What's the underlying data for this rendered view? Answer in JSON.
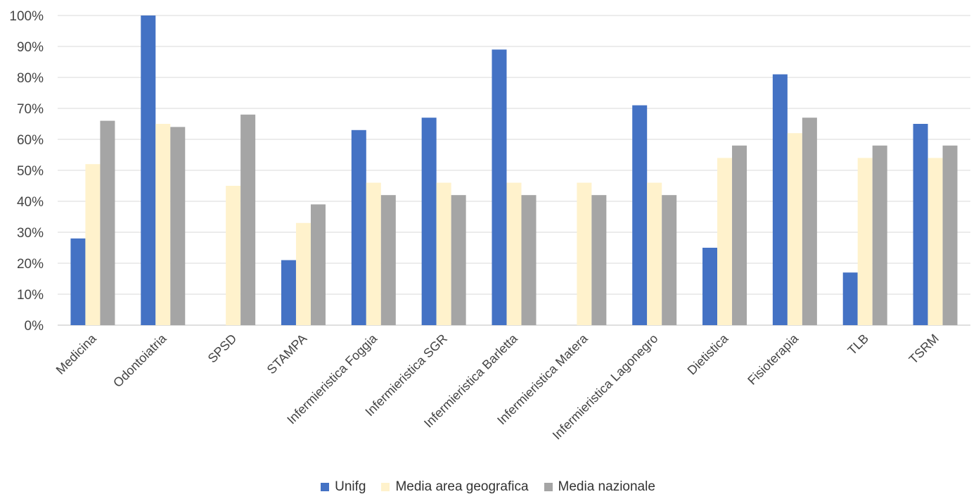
{
  "chart_data": {
    "type": "bar",
    "categories": [
      "Medicina",
      "Odontoiatria",
      "SPSD",
      "STAMPA",
      "Infermieristica Foggia",
      "Infermieristica SGR",
      "Infermieristica Barletta",
      "Infermieristica Matera",
      "Infermieristica Lagonegro",
      "Dietistica",
      "Fisioterapia",
      "TLB",
      "TSRM"
    ],
    "series": [
      {
        "name": "Unifg",
        "color": "#4472C4",
        "values": [
          0.28,
          1.0,
          null,
          0.21,
          0.63,
          0.67,
          0.89,
          null,
          0.71,
          0.25,
          0.81,
          0.17,
          0.65
        ]
      },
      {
        "name": "Media area geografica",
        "color": "#FFF2CC",
        "values": [
          0.52,
          0.65,
          0.45,
          0.33,
          0.46,
          0.46,
          0.46,
          0.46,
          0.46,
          0.54,
          0.62,
          0.54,
          0.54
        ]
      },
      {
        "name": "Media nazionale",
        "color": "#A5A5A5",
        "values": [
          0.66,
          0.64,
          0.68,
          0.39,
          0.42,
          0.42,
          0.42,
          0.42,
          0.42,
          0.58,
          0.67,
          0.58,
          0.58
        ]
      }
    ],
    "ylim": [
      0,
      1
    ],
    "yticks": [
      "0%",
      "10%",
      "20%",
      "30%",
      "40%",
      "50%",
      "60%",
      "70%",
      "80%",
      "90%",
      "100%"
    ],
    "grid": true,
    "legend_position": "bottom"
  }
}
